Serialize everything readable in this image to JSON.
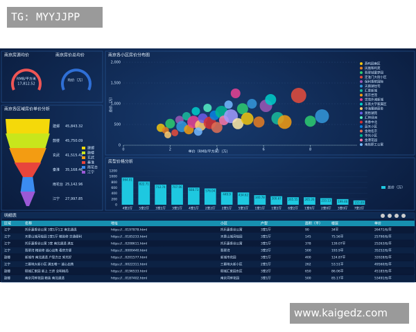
{
  "watermark_top": "TG: MYYJJPP",
  "watermark_bottom": "www.kaigedz.com",
  "gauges": [
    {
      "title": "南京房源均价",
      "unit": "RMB/平方米",
      "value": "17,812.52"
    },
    {
      "title": "南京房价总均价",
      "unit": "均价（万）"
    }
  ],
  "chart_data": [
    {
      "type": "funnel",
      "title": "南京各区域房价单价分析",
      "categories": [
        "建邺",
        "鼓楼",
        "玄武",
        "秦淮",
        "雨花台",
        "江宁"
      ],
      "values": [
        45843.32,
        45750.09,
        41515.42,
        35168.46,
        25142.96,
        27997.85
      ],
      "value_labels": [
        "45,843.32",
        "45,750.09",
        "41,515.42",
        "35,168.46",
        "25,142.96",
        "27,997.85"
      ],
      "colors": [
        "#f5d90a",
        "#c8e61c",
        "#f39c12",
        "#e8453c",
        "#3b8cf0",
        "#9b59d6"
      ]
    },
    {
      "type": "scatter",
      "title": "南京各小区房价分布图",
      "xlabel": "单价（RMB/平方米）(万)",
      "ylabel": "总价（万）",
      "xlim": [
        0,
        10
      ],
      "xticks": [
        0,
        2,
        4,
        6,
        8
      ],
      "ylim": [
        0,
        2000
      ],
      "yticks": [
        0,
        {
          "value": 500,
          "label": "500"
        },
        {
          "value": 1000,
          "label": "1,000"
        },
        {
          "value": 1500,
          "label": "1,500"
        },
        {
          "value": 2000,
          "label": "2,000"
        }
      ],
      "x": [
        1.6,
        1.8,
        2.0,
        2.2,
        2.4,
        2.5,
        2.7,
        2.8,
        3.0,
        3.1,
        3.3,
        3.4,
        3.6,
        3.7,
        3.9,
        4.0,
        4.2,
        4.3,
        4.5,
        4.6,
        4.8,
        4.9,
        5.1,
        5.3,
        5.5,
        5.8,
        6.1,
        6.3,
        6.6,
        6.9,
        7.5,
        8.0,
        8.5,
        1.9,
        3.2
      ],
      "values": [
        420,
        360,
        520,
        300,
        610,
        450,
        700,
        380,
        560,
        820,
        480,
        650,
        900,
        540,
        720,
        430,
        800,
        600,
        980,
        700,
        1250,
        520,
        880,
        640,
        1000,
        560,
        950,
        1100,
        650,
        560,
        1200,
        580,
        700,
        250,
        330
      ],
      "sizes": [
        6,
        5,
        7,
        5,
        6,
        8,
        6,
        7,
        9,
        6,
        8,
        7,
        6,
        9,
        7,
        8,
        9,
        7,
        6,
        10,
        7,
        8,
        8,
        9,
        7,
        8,
        9,
        8,
        9,
        10,
        11,
        8,
        10,
        5,
        6
      ],
      "colors": [
        "#f1c40f",
        "#e67e22",
        "#2ecc71",
        "#e74c3c",
        "#9b59b6",
        "#3498db",
        "#1abc9c",
        "#f39c12",
        "#e84393",
        "#00cec9",
        "#fdcb6e",
        "#6c5ce7",
        "#55efc4",
        "#d63031",
        "#0984e3",
        "#e17055",
        "#00b894",
        "#fd79a8",
        "#74b9ff",
        "#a29bfe",
        "#e84393",
        "#ffeaa7",
        "#2ecc71",
        "#f1c40f",
        "#3498db",
        "#e67e22",
        "#9b59b6",
        "#00cec9",
        "#1abc9c",
        "#f39c12",
        "#e74c3c",
        "#2ecc71",
        "#3498db",
        "#fdcb6e",
        "#74b9ff"
      ],
      "legend": [
        "燕鸣园南区",
        "凤凰和鸣苑",
        "翡翠城童梦园",
        "定淮门大街小区",
        "保利香槟国际",
        "天鹅湖住宅",
        "汇景新城",
        "南京世茂",
        "世茂外滩新城",
        "东南大学家属区",
        "中海塞纳丽舍",
        "莫愁湖苑",
        "汇林绿洲",
        "青春中北",
        "蓝天小区",
        "金地名京",
        "华光小区",
        "金港花园",
        "南航职工公寓"
      ]
    },
    {
      "type": "bar",
      "title": "房型价格分析",
      "legend": "总价（万）",
      "color": "#1ec8e0",
      "categories": [
        "4室2厅",
        "5室2厅",
        "3室2厅",
        "3室1厅",
        "4室1厅",
        "2室2厅",
        "2室1厅",
        "5室1厅",
        "1室1厅",
        "1室2厅",
        "6室2厅",
        "1室0厅",
        "2室0厅",
        "3室0厅",
        "7室2厅"
      ],
      "values": [
        964.01,
        822.71,
        712.74,
        707.06,
        608.73,
        576.04,
        449.9,
        434.62,
        340.78,
        300.67,
        265.55,
        265.26,
        233.13,
        199.46,
        153.89
      ],
      "ylim": [
        0,
        1200
      ],
      "yticks": [
        0,
        200,
        400,
        600,
        800,
        1000,
        1200
      ]
    }
  ],
  "table": {
    "title": "明细表",
    "columns": [
      "区域",
      "名称",
      "地址",
      "小区",
      "户型",
      "面积（平）",
      "楼层",
      "单价"
    ],
    "rows": [
      [
        "江宁",
        "托乐嘉香谷公寓 3室1厅1卫 南北通透",
        "https://...0197878.html",
        "托乐嘉香谷公寓",
        "3室1厅",
        "90",
        "34平",
        "26471元/平"
      ],
      [
        "江宁",
        "天景山城月桂园 2室1厅 精装修 交通便利",
        "https://...0185233.html",
        "天景山城月桂园",
        "3室1厅",
        "145",
        "75.56平",
        "25790元/平"
      ],
      [
        "江宁",
        "托乐嘉香谷公寓 3室 南北通透 满五",
        "https://...0208611.html",
        "托乐嘉香谷公寓",
        "3室1厅",
        "378",
        "139.07平",
        "25263元/平"
      ],
      [
        "江宁",
        "翡翠湾 精装修 诚心出售 看房方便",
        "https://...0000440.html",
        "翡翠湾",
        "3室2厅",
        "500",
        "193.9平",
        "35252元/平"
      ],
      [
        "鼓楼",
        "新城市 南北通透 户型方正 采光好",
        "https://...0201577.html",
        "新城市花园",
        "3室1厅",
        "400",
        "124.87平",
        "32028元/平"
      ],
      [
        "江宁",
        "三爵地大新小区 满五唯一 诚心出售",
        "https://...0022311.html",
        "三爵地大新小区",
        "2室1厅",
        "262",
        "53.51平",
        "49560元/平"
      ],
      [
        "鼓楼",
        "颐城汇家园 新上 三房 全明格局",
        "https://...0196533.html",
        "颐城汇家园东区",
        "3室2厅",
        "650",
        "86.06平",
        "45185元/平"
      ],
      [
        "鼓楼",
        "南京河畔花园 精装 南北通透",
        "https://...0187402.html",
        "南京河畔花园",
        "3室1厅",
        "500",
        "85.17平",
        "53491元/平"
      ]
    ]
  }
}
